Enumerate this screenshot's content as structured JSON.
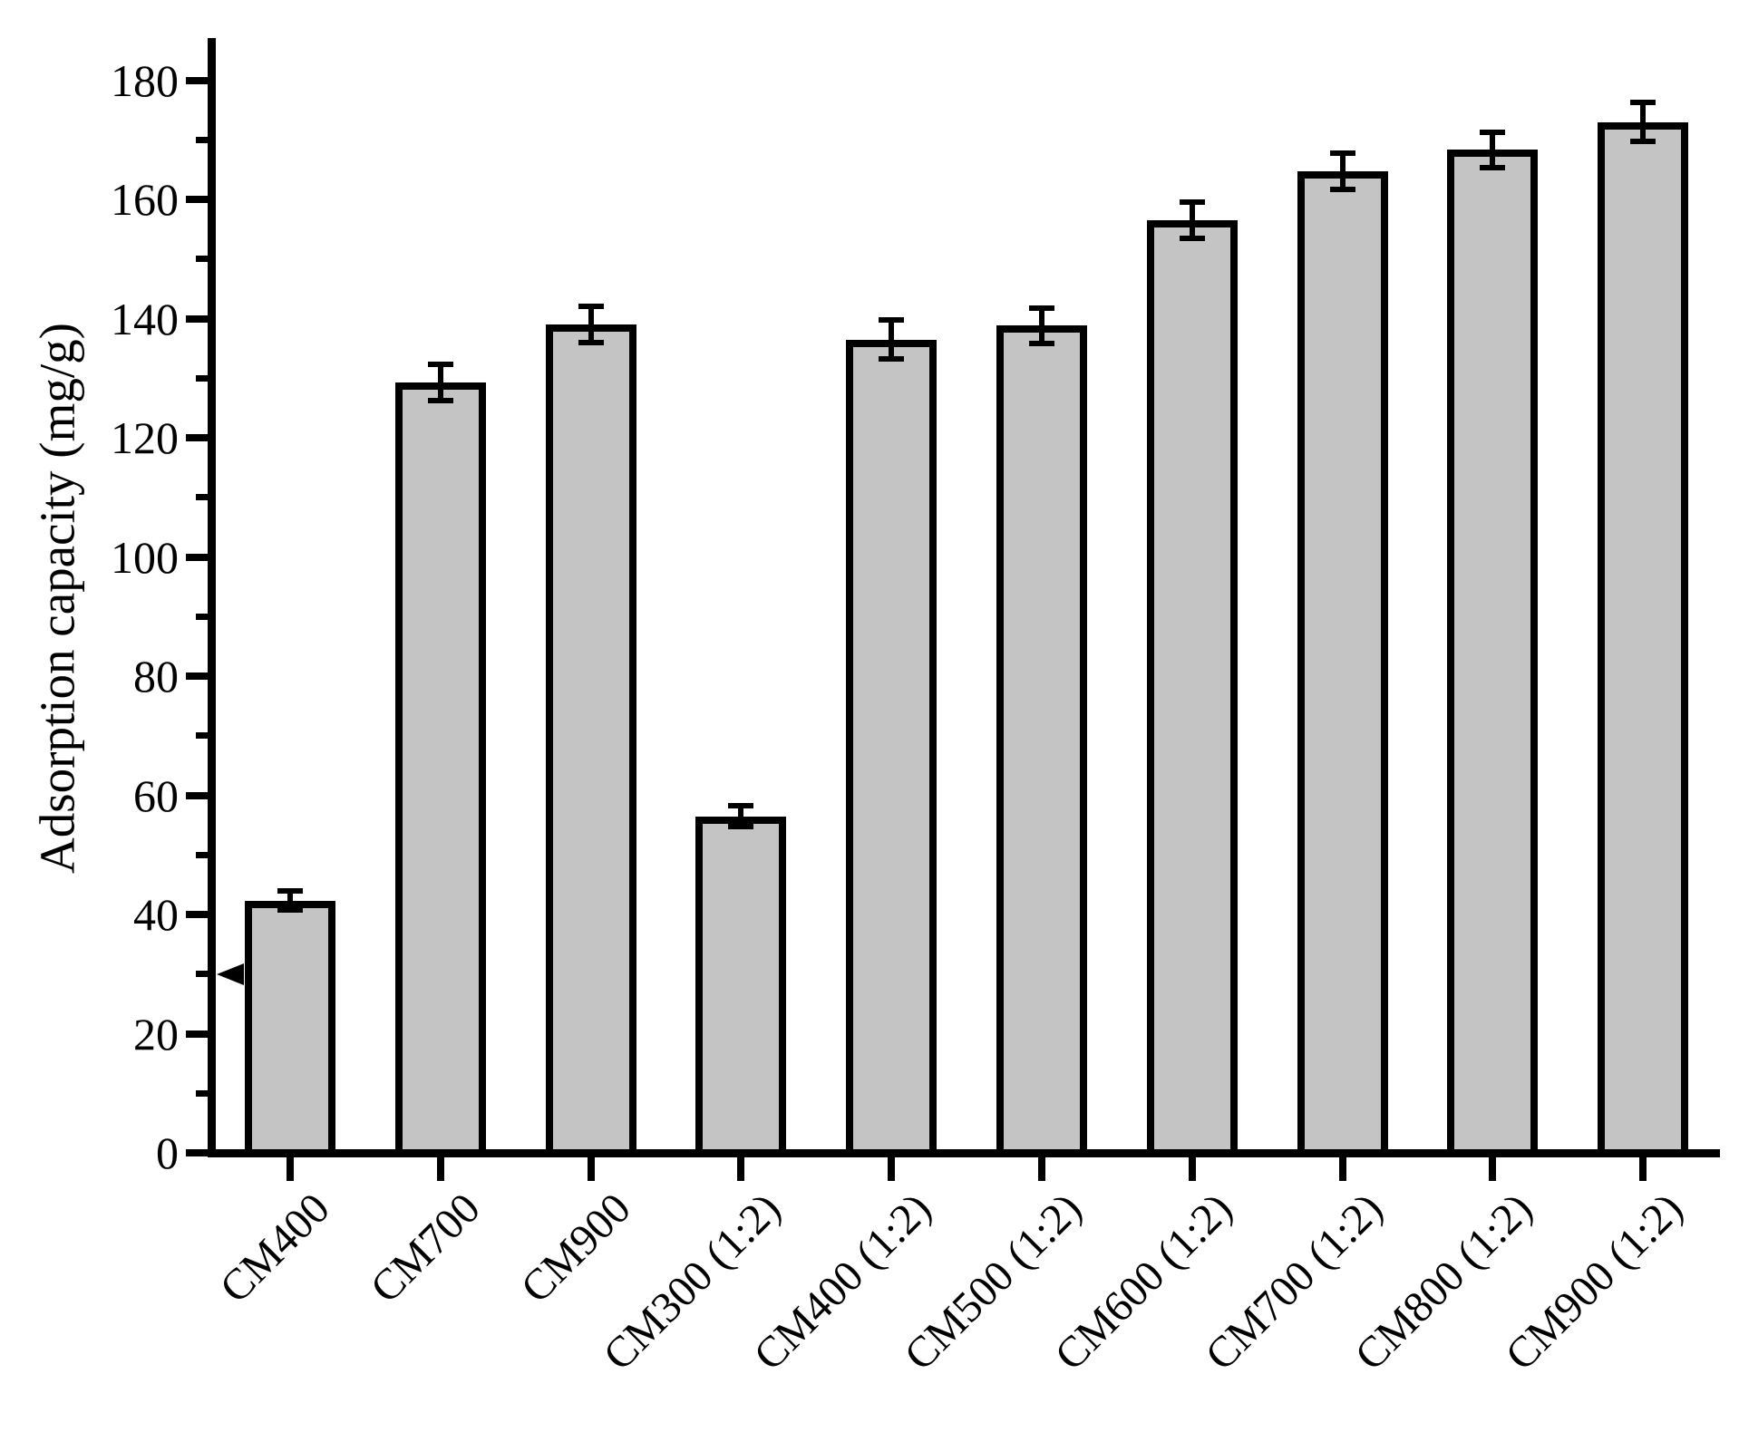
{
  "figure": {
    "background_color": "#ffffff",
    "bar_fill_color": "#c4c4c4",
    "line_color": "#000000"
  },
  "chart_data": {
    "type": "bar",
    "title": "",
    "xlabel": "",
    "ylabel": "Adsorption capacity (mg/g)",
    "categories": [
      "CM400",
      "CM700",
      "CM900",
      "CM300 (1:2)",
      "CM400 (1:2)",
      "CM500 (1:2)",
      "CM600 (1:2)",
      "CM700 (1:2)",
      "CM800 (1:2)",
      "CM900 (1:2)"
    ],
    "values": [
      42.3,
      129.3,
      139.0,
      56.5,
      136.5,
      138.8,
      156.5,
      164.7,
      168.3,
      173.0
    ],
    "errors": [
      1.6,
      3.0,
      3.0,
      1.7,
      3.2,
      3.0,
      3.1,
      3.0,
      3.0,
      3.2
    ],
    "error_bars": true,
    "ylim": [
      0,
      187
    ],
    "yticks_major": [
      0,
      20,
      40,
      60,
      80,
      100,
      120,
      140,
      160,
      180
    ],
    "yticks_minor": [
      10,
      30,
      50,
      70,
      90,
      110,
      130,
      150,
      170
    ],
    "grid": false,
    "legend": null,
    "bar_color": "#c4c4c4",
    "bar_edge_color": "#000000",
    "annotations": [
      {
        "type": "left-arrow-marker",
        "y": 30,
        "description": "solid left-pointing triangle beside axis at y=30"
      }
    ],
    "x_tick_label_rotation_deg": 45
  }
}
